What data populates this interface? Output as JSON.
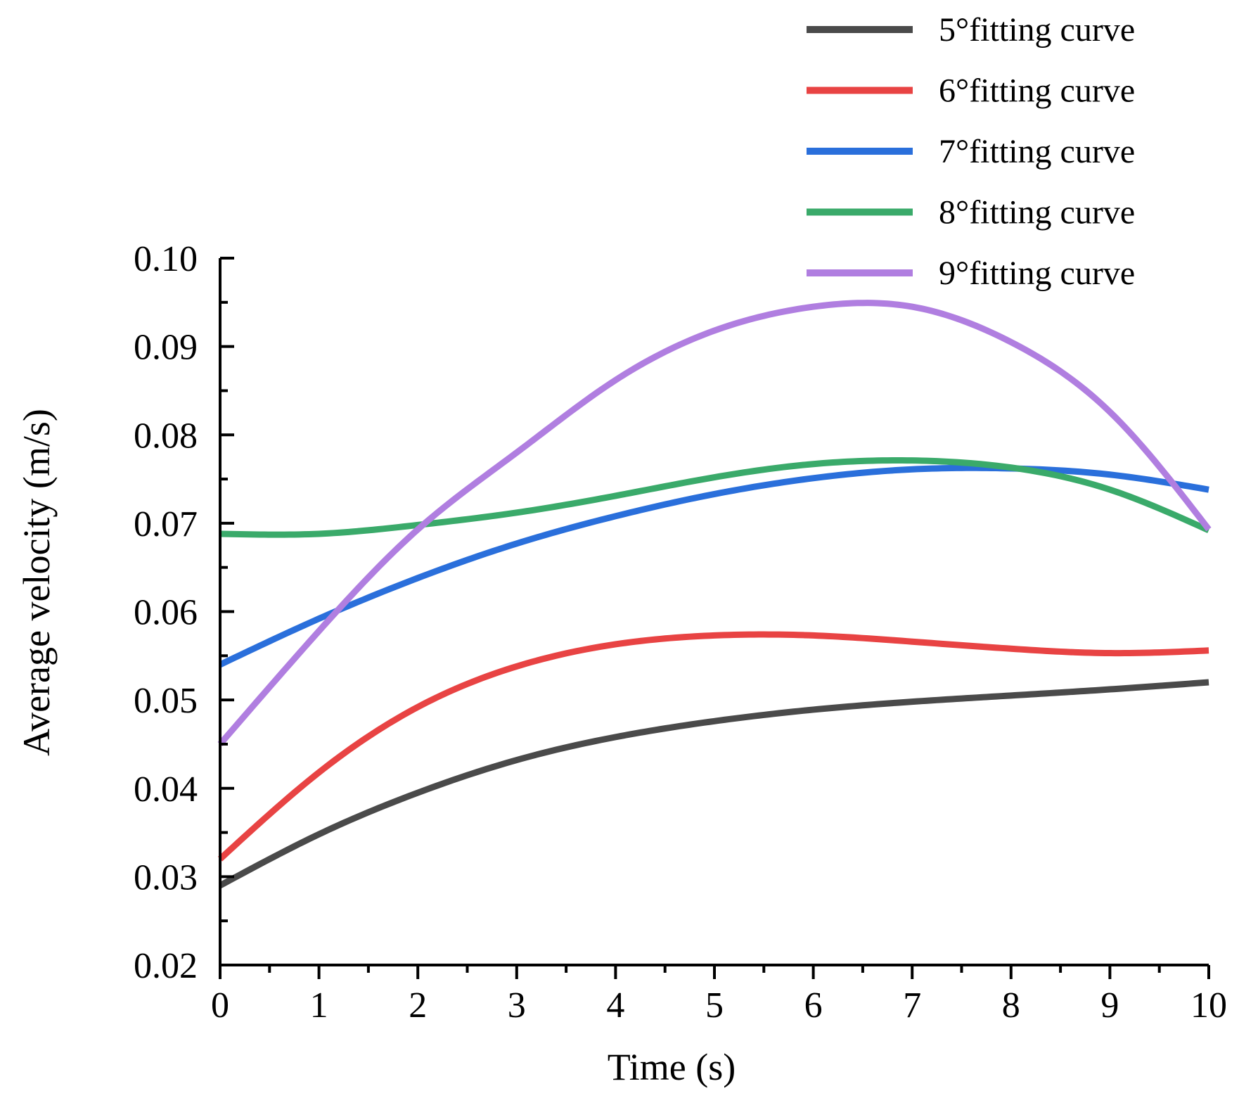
{
  "chart_data": {
    "type": "line",
    "title": "",
    "xlabel": "Time (s)",
    "ylabel": "Average velocity (m/s)",
    "xlim": [
      0,
      10
    ],
    "ylim": [
      0.02,
      0.1
    ],
    "x_ticks": [
      0,
      1,
      2,
      3,
      4,
      5,
      6,
      7,
      8,
      9,
      10
    ],
    "x_tick_labels": [
      "0",
      "1",
      "2",
      "3",
      "4",
      "5",
      "6",
      "7",
      "8",
      "9",
      "10"
    ],
    "y_ticks": [
      0.02,
      0.03,
      0.04,
      0.05,
      0.06,
      0.07,
      0.08,
      0.09,
      0.1
    ],
    "y_tick_labels": [
      "0.02",
      "0.03",
      "0.04",
      "0.05",
      "0.06",
      "0.07",
      "0.08",
      "0.09",
      "0.10"
    ],
    "grid": false,
    "legend_position": "top-right",
    "x": [
      0,
      1,
      2,
      3,
      4,
      5,
      6,
      7,
      8,
      9,
      10
    ],
    "series": [
      {
        "name": "5°fitting curve",
        "color": "#4a4a4a",
        "values": [
          0.029,
          0.0348,
          0.0395,
          0.0432,
          0.0458,
          0.0476,
          0.0489,
          0.0498,
          0.0505,
          0.0512,
          0.052
        ]
      },
      {
        "name": "6°fitting curve",
        "color": "#e84343",
        "values": [
          0.032,
          0.0418,
          0.0492,
          0.0538,
          0.0563,
          0.0573,
          0.0573,
          0.0566,
          0.0558,
          0.0553,
          0.0556
        ]
      },
      {
        "name": "7°fitting curve",
        "color": "#2a6fdb",
        "values": [
          0.054,
          0.0592,
          0.0638,
          0.0677,
          0.0708,
          0.0733,
          0.0751,
          0.0761,
          0.0762,
          0.0755,
          0.0738
        ]
      },
      {
        "name": "8°fitting curve",
        "color": "#3aaa6a",
        "values": [
          0.0688,
          0.0688,
          0.0698,
          0.0712,
          0.0731,
          0.0752,
          0.0767,
          0.0771,
          0.0763,
          0.0738,
          0.0692
        ]
      },
      {
        "name": "9°fitting curve",
        "color": "#b07ee0",
        "values": [
          0.045,
          0.0578,
          0.0693,
          0.078,
          0.0862,
          0.0918,
          0.0945,
          0.0945,
          0.0905,
          0.0826,
          0.0693
        ]
      }
    ]
  }
}
